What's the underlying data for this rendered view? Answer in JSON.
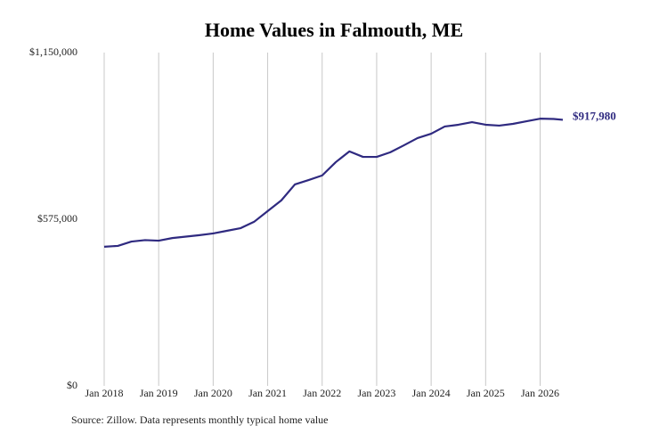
{
  "chart_data": {
    "type": "line",
    "title": "Home Values in Falmouth, ME",
    "source": "Source: Zillow. Data represents monthly typical home value",
    "x": [
      "2018-01",
      "2018-04",
      "2018-07",
      "2018-10",
      "2019-01",
      "2019-04",
      "2019-07",
      "2019-10",
      "2020-01",
      "2020-04",
      "2020-07",
      "2020-10",
      "2021-01",
      "2021-04",
      "2021-07",
      "2021-10",
      "2022-01",
      "2022-04",
      "2022-07",
      "2022-10",
      "2023-01",
      "2023-04",
      "2023-07",
      "2023-10",
      "2024-01",
      "2024-04",
      "2024-07",
      "2024-10",
      "2025-01",
      "2025-04",
      "2025-07",
      "2025-10",
      "2026-01",
      "2026-04",
      "2026-06"
    ],
    "xlim": [
      "2018-01",
      "2026-06"
    ],
    "xticks": [
      {
        "value": "2018-01",
        "label": "Jan 2018"
      },
      {
        "value": "2019-01",
        "label": "Jan 2019"
      },
      {
        "value": "2020-01",
        "label": "Jan 2020"
      },
      {
        "value": "2021-01",
        "label": "Jan 2021"
      },
      {
        "value": "2022-01",
        "label": "Jan 2022"
      },
      {
        "value": "2023-01",
        "label": "Jan 2023"
      },
      {
        "value": "2024-01",
        "label": "Jan 2024"
      },
      {
        "value": "2025-01",
        "label": "Jan 2025"
      },
      {
        "value": "2026-01",
        "label": "Jan 2026"
      }
    ],
    "ylim": [
      0,
      1150000
    ],
    "yticks": [
      {
        "value": 0,
        "label": "$0"
      },
      {
        "value": 575000,
        "label": "$575,000"
      },
      {
        "value": 1150000,
        "label": "$1,150,000"
      }
    ],
    "grid": "x",
    "series": [
      {
        "color": "#2f2a80",
        "values": [
          480000,
          483000,
          498000,
          503000,
          501000,
          510000,
          515000,
          520000,
          526000,
          535000,
          544000,
          566000,
          603000,
          640000,
          695000,
          710000,
          726000,
          772000,
          809000,
          790000,
          790000,
          806000,
          830000,
          855000,
          870000,
          895000,
          901000,
          910000,
          901000,
          898000,
          904000,
          913000,
          922000,
          921000,
          917980
        ],
        "value_labels": [
          null,
          null,
          null,
          null,
          null,
          null,
          null,
          null,
          null,
          null,
          null,
          null,
          null,
          null,
          null,
          null,
          null,
          null,
          null,
          null,
          null,
          null,
          null,
          null,
          null,
          null,
          null,
          null,
          null,
          null,
          null,
          null,
          null,
          null,
          "$917,980"
        ]
      }
    ]
  }
}
